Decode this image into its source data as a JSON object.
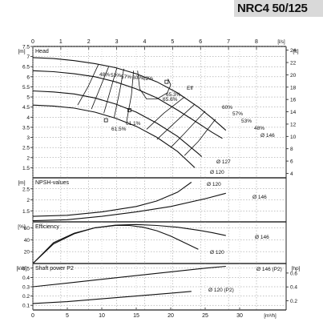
{
  "title": "NRC4 50/125",
  "chart_data": {
    "type": "line",
    "x_top": {
      "unit": "[l/s]",
      "ticks": [
        0,
        1,
        2,
        3,
        4,
        5,
        6,
        7,
        8
      ]
    },
    "x_bottom": {
      "unit": "[m³/h]",
      "ticks": [
        0,
        5,
        10,
        15,
        20,
        25,
        30
      ]
    },
    "panels": [
      {
        "id": "head",
        "label": "Head",
        "y_unit_left": "[m]",
        "y_unit_right": "[ft]",
        "ylim": [
          1,
          7.5
        ],
        "y_ticks": [
          1.5,
          2,
          2.5,
          3,
          3.5,
          4,
          4.5,
          5,
          5.5,
          6,
          6.5,
          7,
          7.5
        ],
        "y_right_ticks": [
          4,
          6,
          8,
          10,
          12,
          14,
          16,
          18,
          20,
          22,
          24
        ],
        "series": [
          {
            "name": "Ø 146",
            "x": [
              0,
              3,
              6,
              9,
              12,
              15,
              18,
              21,
              24,
              26,
              28
            ],
            "y": [
              6.95,
              6.9,
              6.8,
              6.65,
              6.45,
              6.15,
              5.75,
              5.2,
              4.5,
              3.95,
              3.35
            ]
          },
          {
            "name": "Ø 139",
            "x": [
              0,
              3,
              6,
              9,
              12,
              15,
              18,
              21,
              24,
              26,
              27.5
            ],
            "y": [
              6.3,
              6.25,
              6.15,
              6.0,
              5.75,
              5.4,
              4.95,
              4.35,
              3.7,
              3.25,
              2.95
            ]
          },
          {
            "name": "Ø 127",
            "x": [
              0,
              3,
              6,
              9,
              12,
              15,
              18,
              21,
              24,
              24.5
            ],
            "y": [
              5.3,
              5.25,
              5.15,
              4.95,
              4.65,
              4.25,
              3.7,
              3.05,
              2.2,
              2.05
            ]
          },
          {
            "name": "Ø 120",
            "x": [
              0,
              3,
              6,
              9,
              12,
              15,
              18,
              21,
              23.5
            ],
            "y": [
              4.6,
              4.55,
              4.45,
              4.25,
              3.95,
              3.55,
              3.0,
              2.3,
              1.5
            ]
          }
        ],
        "efficiency_labels": [
          "48%",
          "53%",
          "57%",
          "60%",
          "62%",
          "Eff",
          "65.3%",
          "65.6%",
          "60%",
          "57%",
          "53%",
          "48%",
          "61.1%",
          "61.5%"
        ],
        "curve_labels": [
          "Ø 146",
          "Ø 127",
          "Ø 120"
        ]
      },
      {
        "id": "npsh",
        "label": "NPSH-values",
        "y_unit_left": "[m]",
        "ylim": [
          1,
          3
        ],
        "y_ticks": [
          1.5,
          2,
          2.5
        ],
        "series": [
          {
            "name": "Ø 120",
            "x": [
              0,
              5,
              10,
              15,
              18,
              21,
              23
            ],
            "y": [
              1.25,
              1.3,
              1.45,
              1.7,
              1.95,
              2.35,
              2.8
            ]
          },
          {
            "name": "Ø 146",
            "x": [
              0,
              5,
              10,
              15,
              20,
              25,
              28
            ],
            "y": [
              1.05,
              1.1,
              1.25,
              1.45,
              1.7,
              2.05,
              2.3
            ]
          }
        ],
        "curve_labels": [
          "Ø 120",
          "Ø 146"
        ]
      },
      {
        "id": "efficiency",
        "label": "Efficiency",
        "y_unit_left": "[%]",
        "ylim": [
          0,
          70
        ],
        "y_ticks": [
          20,
          40,
          60
        ],
        "series": [
          {
            "name": "Ø 146",
            "x": [
              0,
              3,
              6,
              9,
              12,
              15,
              18,
              21,
              24,
              26,
              28
            ],
            "y": [
              0,
              33,
              50,
              60,
              64.5,
              65.6,
              64,
              61,
              56,
              52,
              47
            ]
          },
          {
            "name": "Ø 120",
            "x": [
              0,
              3,
              6,
              9,
              12,
              14,
              16,
              18,
              20,
              22,
              24
            ],
            "y": [
              0,
              35,
              51,
              60,
              64,
              64,
              61,
              55,
              46,
              35,
              24
            ]
          }
        ],
        "curve_labels": [
          "Ø 146",
          "Ø 120"
        ]
      },
      {
        "id": "power",
        "label": "Shaft power P2",
        "y_unit_left": "[kW]",
        "y_unit_right": "[hp]",
        "ylim": [
          0.05,
          0.55
        ],
        "y_ticks": [
          0.1,
          0.2,
          0.3,
          0.4,
          0.5
        ],
        "y_right_ticks": [
          0.2,
          0.4,
          0.6
        ],
        "series": [
          {
            "name": "Ø 146 (P2)",
            "x": [
              0,
              5,
              10,
              15,
              20,
              25,
              28
            ],
            "y": [
              0.3,
              0.34,
              0.38,
              0.42,
              0.46,
              0.5,
              0.52
            ]
          },
          {
            "name": "Ø 120 (P2)",
            "x": [
              0,
              5,
              10,
              15,
              20,
              23
            ],
            "y": [
              0.12,
              0.14,
              0.17,
              0.2,
              0.23,
              0.25
            ]
          }
        ],
        "curve_labels": [
          "Ø 146 (P2)",
          "Ø 120 (P2)"
        ]
      }
    ]
  }
}
